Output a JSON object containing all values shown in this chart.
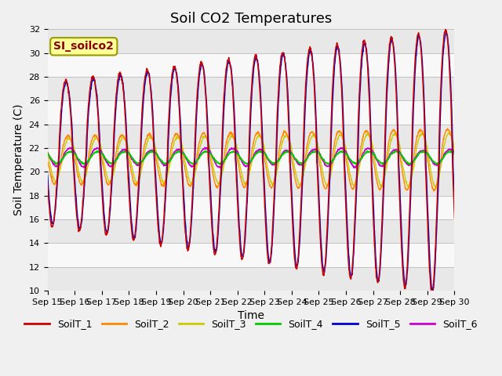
{
  "title": "Soil CO2 Temperatures",
  "xlabel": "Time",
  "ylabel": "Soil Temperature (C)",
  "ylim": [
    10,
    32
  ],
  "x_tick_labels": [
    "Sep 15",
    "Sep 16",
    "Sep 17",
    "Sep 18",
    "Sep 19",
    "Sep 20",
    "Sep 21",
    "Sep 22",
    "Sep 23",
    "Sep 24",
    "Sep 25",
    "Sep 26",
    "Sep 27",
    "Sep 28",
    "Sep 29",
    "Sep 30"
  ],
  "legend_labels": [
    "SoilT_1",
    "SoilT_2",
    "SoilT_3",
    "SoilT_4",
    "SoilT_5",
    "SoilT_6"
  ],
  "legend_colors": [
    "#cc0000",
    "#ff8800",
    "#cccc00",
    "#00cc00",
    "#0000cc",
    "#cc00cc"
  ],
  "annotation_text": "SI_soilco2",
  "annotation_bg": "#ffff99",
  "annotation_fg": "#880000",
  "background_color": "#f0f0f0",
  "band_colors": [
    "#e8e8e8",
    "#f8f8f8"
  ],
  "title_fontsize": 13,
  "axis_label_fontsize": 10,
  "tick_fontsize": 8,
  "legend_fontsize": 9
}
